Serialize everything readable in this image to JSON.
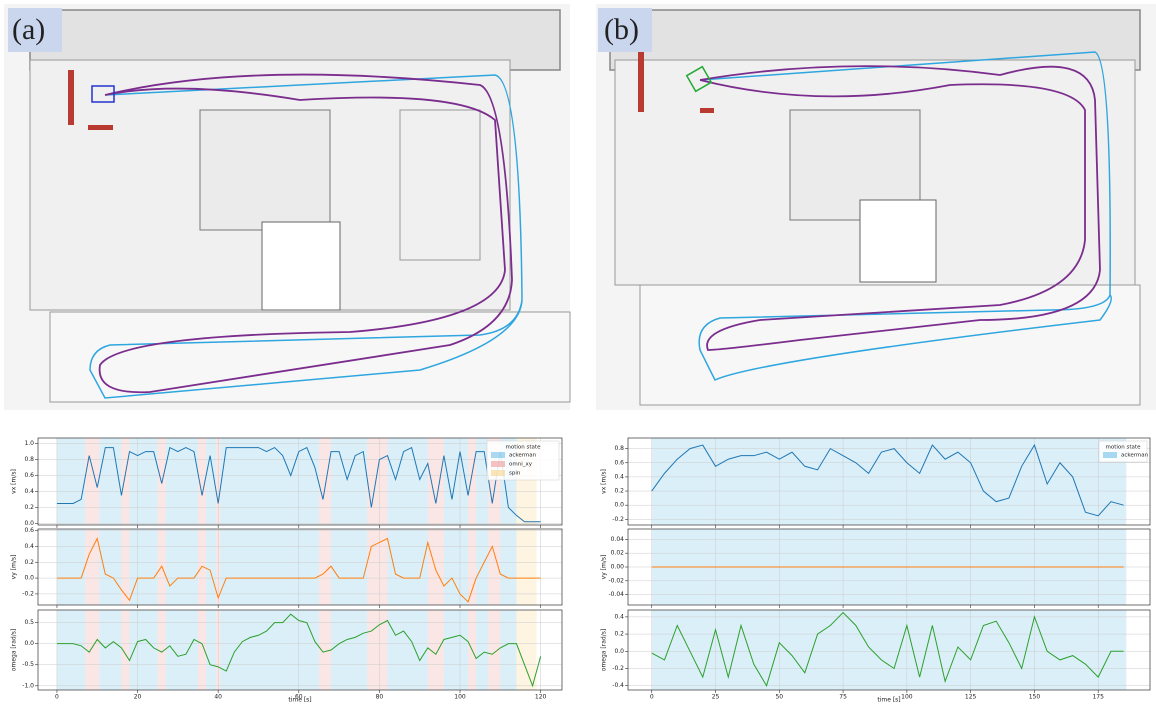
{
  "chart_data": [
    {
      "type": "line",
      "label": "(a)",
      "xlabel": "time [s]",
      "xlim": [
        -4.7,
        125.3
      ],
      "xticks": [
        0,
        20,
        40,
        60,
        80,
        100,
        120
      ],
      "grid": true,
      "legend_title": "motion state",
      "legend": "upper right",
      "states": [
        {
          "name": "ackerman",
          "color": "#6fc0e8"
        },
        {
          "name": "omni_xy",
          "color": "#f09a9a"
        },
        {
          "name": "spin",
          "color": "#f6d58a"
        }
      ],
      "spans": [
        {
          "start": 0,
          "end": 7,
          "state": 0
        },
        {
          "start": 7,
          "end": 10.5,
          "state": 1
        },
        {
          "start": 10.5,
          "end": 16,
          "state": 0
        },
        {
          "start": 16,
          "end": 18,
          "state": 1
        },
        {
          "start": 18,
          "end": 25,
          "state": 0
        },
        {
          "start": 25,
          "end": 27,
          "state": 1
        },
        {
          "start": 27,
          "end": 35,
          "state": 0
        },
        {
          "start": 35,
          "end": 37,
          "state": 1
        },
        {
          "start": 37,
          "end": 39.5,
          "state": 0
        },
        {
          "start": 39.5,
          "end": 40.5,
          "state": 1
        },
        {
          "start": 40.5,
          "end": 65,
          "state": 0
        },
        {
          "start": 65,
          "end": 68,
          "state": 1
        },
        {
          "start": 68,
          "end": 77,
          "state": 0
        },
        {
          "start": 77,
          "end": 82,
          "state": 1
        },
        {
          "start": 82,
          "end": 92,
          "state": 0
        },
        {
          "start": 92,
          "end": 96,
          "state": 1
        },
        {
          "start": 96,
          "end": 102,
          "state": 0
        },
        {
          "start": 102,
          "end": 104,
          "state": 1
        },
        {
          "start": 104,
          "end": 107,
          "state": 0
        },
        {
          "start": 107,
          "end": 110,
          "state": 1
        },
        {
          "start": 110,
          "end": 114,
          "state": 0
        },
        {
          "start": 114,
          "end": 119,
          "state": 2
        }
      ],
      "x": [
        0,
        2,
        4,
        6,
        8,
        10,
        12,
        14,
        16,
        18,
        20,
        22,
        24,
        26,
        28,
        30,
        32,
        34,
        36,
        38,
        40,
        42,
        44,
        46,
        48,
        50,
        52,
        54,
        56,
        58,
        60,
        62,
        64,
        66,
        68,
        70,
        72,
        74,
        76,
        78,
        80,
        82,
        84,
        86,
        88,
        90,
        92,
        94,
        96,
        98,
        100,
        102,
        104,
        106,
        108,
        110,
        112,
        114,
        116,
        118,
        120
      ],
      "subplots": [
        {
          "ylabel": "vx [m/s]",
          "color": "#1f77b4",
          "ylim": [
            -0.02,
            1.07
          ],
          "yticks": [
            {
              "value": 0,
              "label": "0.0"
            },
            0.2,
            0.4,
            0.6,
            0.8,
            {
              "value": 1,
              "label": "1.0"
            }
          ],
          "values": [
            0.25,
            0.25,
            0.25,
            0.3,
            0.85,
            0.45,
            0.95,
            0.95,
            0.35,
            0.9,
            0.85,
            0.9,
            0.9,
            0.5,
            0.95,
            0.9,
            0.95,
            0.9,
            0.35,
            0.85,
            0.25,
            0.95,
            0.95,
            0.95,
            0.95,
            0.95,
            0.9,
            0.95,
            0.85,
            0.6,
            0.9,
            0.95,
            0.7,
            0.3,
            0.9,
            0.9,
            0.55,
            0.85,
            0.9,
            0.2,
            0.8,
            0.85,
            0.55,
            0.9,
            0.95,
            0.55,
            0.75,
            0.25,
            0.85,
            0.3,
            0.9,
            0.35,
            0.9,
            0.9,
            0.25,
            0.9,
            0.2,
            0.1,
            0.02,
            0.02,
            0.02
          ]
        },
        {
          "ylabel": "vy [m/s]",
          "color": "#ff7f0e",
          "ylim": [
            -0.34,
            0.62
          ],
          "yticks": [
            -0.2,
            {
              "value": 0,
              "label": "0.0"
            },
            0.2,
            0.4,
            0.6
          ],
          "values": [
            0,
            0,
            0,
            0,
            0.3,
            0.5,
            0.05,
            0,
            -0.15,
            -0.28,
            0,
            0,
            0,
            0.15,
            -0.1,
            0,
            0,
            0,
            0.15,
            0.1,
            -0.25,
            0,
            0,
            0,
            0,
            0,
            0,
            0,
            0,
            0,
            0,
            0,
            0,
            0.05,
            0.15,
            0,
            0,
            0,
            0,
            0.4,
            0.45,
            0.5,
            0.05,
            0,
            0,
            0,
            0.45,
            0.1,
            -0.1,
            0,
            -0.2,
            -0.3,
            0,
            0.2,
            0.4,
            0.05,
            0,
            0,
            0,
            0,
            0
          ]
        },
        {
          "ylabel": "omega [rad/s]",
          "color": "#2ca02c",
          "ylim": [
            -1.1,
            0.8
          ],
          "yticks": [
            {
              "value": -1,
              "label": "-1.0"
            },
            -0.5,
            {
              "value": 0,
              "label": "0.0"
            },
            0.5
          ],
          "values": [
            0,
            0,
            0,
            -0.05,
            -0.2,
            0.1,
            -0.1,
            0.05,
            -0.1,
            -0.4,
            0.05,
            0.1,
            -0.1,
            -0.2,
            -0.05,
            -0.3,
            -0.25,
            0.1,
            0,
            -0.5,
            -0.55,
            -0.65,
            -0.2,
            0.05,
            0.15,
            0.2,
            0.3,
            0.5,
            0.5,
            0.7,
            0.55,
            0.5,
            0.05,
            -0.2,
            -0.15,
            0,
            0.1,
            0.15,
            0.25,
            0.3,
            0.45,
            0.55,
            0.2,
            0.3,
            0.05,
            -0.4,
            -0.1,
            -0.25,
            0.1,
            0.15,
            0.2,
            0.05,
            -0.35,
            -0.2,
            -0.25,
            -0.1,
            0,
            0,
            -0.5,
            -1.0,
            -0.3
          ]
        }
      ]
    },
    {
      "type": "line",
      "label": "(b)",
      "xlabel": "time [s]",
      "xlim": [
        -9.3,
        195.3
      ],
      "xticks": [
        0,
        25,
        50,
        75,
        100,
        125,
        150,
        175
      ],
      "grid": true,
      "legend_title": "motion state",
      "legend": "upper right",
      "states": [
        {
          "name": "ackerman",
          "color": "#6fc0e8"
        }
      ],
      "spans": [
        {
          "start": 0,
          "end": 186,
          "state": 0
        }
      ],
      "x": [
        0,
        5,
        10,
        15,
        20,
        25,
        30,
        35,
        40,
        45,
        50,
        55,
        60,
        65,
        70,
        75,
        80,
        85,
        90,
        95,
        100,
        105,
        110,
        115,
        120,
        125,
        130,
        135,
        140,
        145,
        150,
        155,
        160,
        165,
        170,
        175,
        180,
        185
      ],
      "subplots": [
        {
          "ylabel": "vx [m/s]",
          "color": "#1f77b4",
          "ylim": [
            -0.28,
            0.95
          ],
          "yticks": [
            -0.2,
            {
              "value": 0,
              "label": "0.0"
            },
            0.2,
            0.4,
            0.6,
            0.8
          ],
          "values": [
            0.2,
            0.45,
            0.65,
            0.8,
            0.85,
            0.55,
            0.65,
            0.7,
            0.7,
            0.75,
            0.65,
            0.75,
            0.55,
            0.5,
            0.8,
            0.7,
            0.6,
            0.45,
            0.75,
            0.8,
            0.6,
            0.45,
            0.85,
            0.65,
            0.75,
            0.6,
            0.2,
            0.05,
            0.1,
            0.55,
            0.85,
            0.3,
            0.6,
            0.4,
            -0.1,
            -0.15,
            0.05,
            0
          ]
        },
        {
          "ylabel": "vy [m/s]",
          "color": "#ff7f0e",
          "ylim": [
            -0.055,
            0.055
          ],
          "yticks": [
            -0.04,
            -0.02,
            {
              "value": 0,
              "label": "0.00"
            },
            0.02,
            0.04
          ],
          "values": [
            0,
            0,
            0,
            0,
            0,
            0,
            0,
            0,
            0,
            0,
            0,
            0,
            0,
            0,
            0,
            0,
            0,
            0,
            0,
            0,
            0,
            0,
            0,
            0,
            0,
            0,
            0,
            0,
            0,
            0,
            0,
            0,
            0,
            0,
            0,
            0,
            0,
            0
          ]
        },
        {
          "ylabel": "omega [rad/s]",
          "color": "#2ca02c",
          "ylim": [
            -0.45,
            0.48
          ],
          "yticks": [
            -0.4,
            -0.2,
            {
              "value": 0,
              "label": "0.0"
            },
            0.2,
            0.4
          ],
          "values": [
            -0.02,
            -0.1,
            0.3,
            0,
            -0.3,
            0.25,
            -0.3,
            0.3,
            -0.15,
            -0.4,
            0.1,
            -0.05,
            -0.25,
            0.2,
            0.3,
            0.45,
            0.3,
            0.05,
            -0.1,
            -0.2,
            0.3,
            -0.3,
            0.3,
            -0.35,
            0.05,
            -0.1,
            0.3,
            0.35,
            0.1,
            -0.2,
            0.4,
            0,
            -0.1,
            -0.05,
            -0.15,
            -0.3,
            0,
            0
          ]
        }
      ]
    }
  ]
}
